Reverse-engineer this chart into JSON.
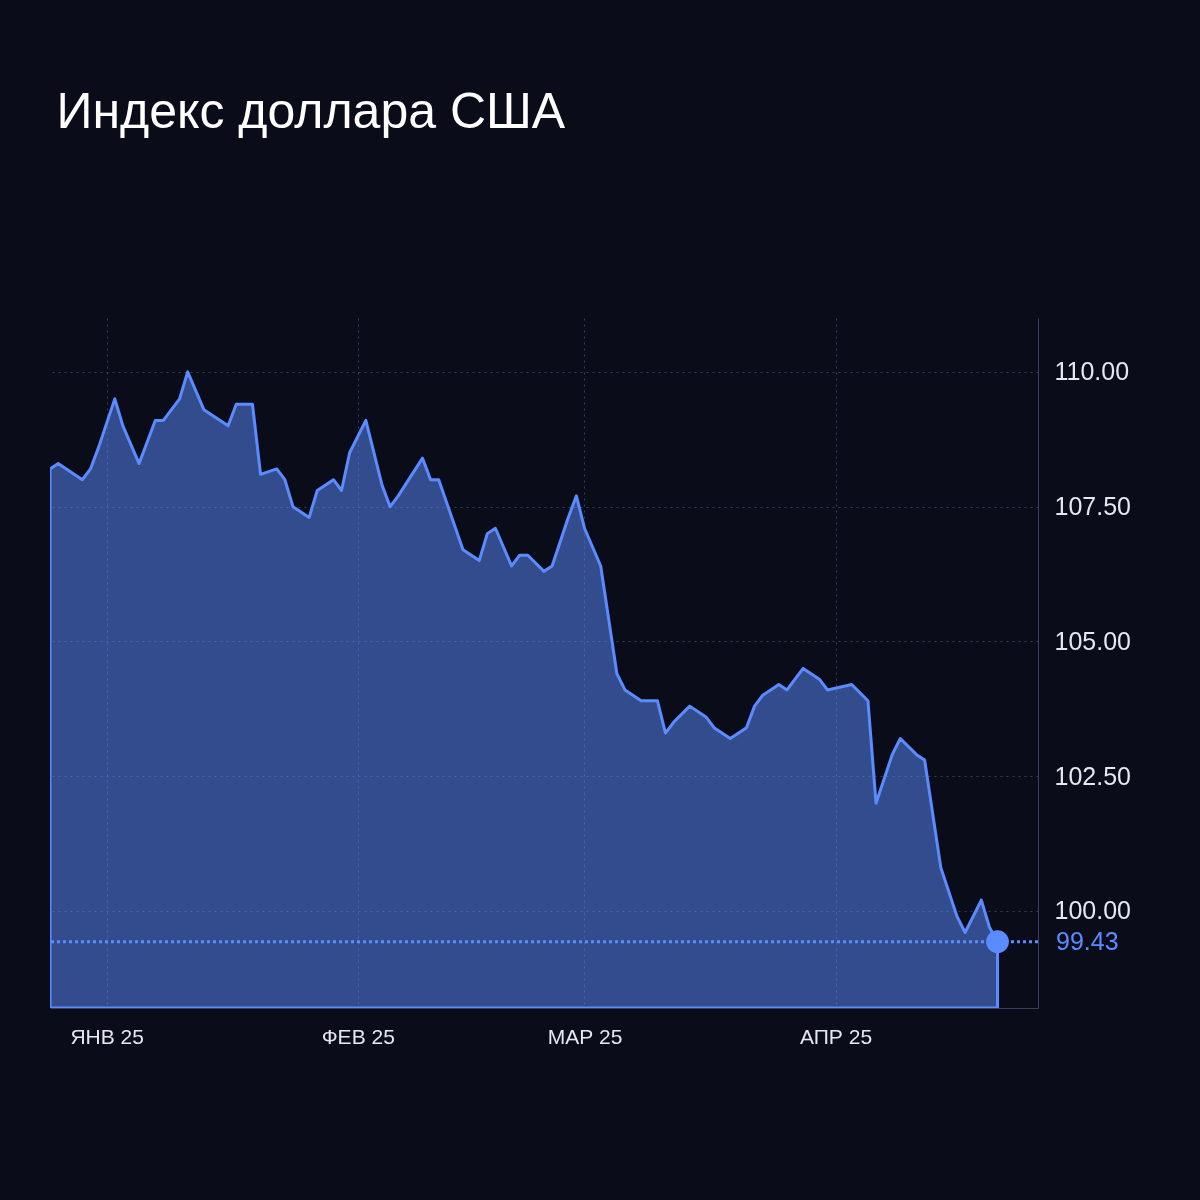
{
  "chart_data": {
    "type": "area",
    "title": "Индекс доллара США",
    "x": [
      "2024-12-25",
      "2024-12-26",
      "2024-12-29",
      "2024-12-30",
      "2024-12-31",
      "2025-01-02",
      "2025-01-03",
      "2025-01-05",
      "2025-01-06",
      "2025-01-07",
      "2025-01-08",
      "2025-01-10",
      "2025-01-11",
      "2025-01-13",
      "2025-01-16",
      "2025-01-17",
      "2025-01-19",
      "2025-01-20",
      "2025-01-22",
      "2025-01-23",
      "2025-01-24",
      "2025-01-26",
      "2025-01-27",
      "2025-01-29",
      "2025-01-30",
      "2025-01-31",
      "2025-02-02",
      "2025-02-04",
      "2025-02-05",
      "2025-02-06",
      "2025-02-09",
      "2025-02-10",
      "2025-02-11",
      "2025-02-14",
      "2025-02-16",
      "2025-02-17",
      "2025-02-18",
      "2025-02-20",
      "2025-02-21",
      "2025-02-22",
      "2025-02-24",
      "2025-02-25",
      "2025-02-27",
      "2025-02-28",
      "2025-03-01",
      "2025-03-03",
      "2025-03-05",
      "2025-03-06",
      "2025-03-08",
      "2025-03-10",
      "2025-03-11",
      "2025-03-12",
      "2025-03-14",
      "2025-03-16",
      "2025-03-17",
      "2025-03-19",
      "2025-03-21",
      "2025-03-22",
      "2025-03-23",
      "2025-03-25",
      "2025-03-26",
      "2025-03-28",
      "2025-03-30",
      "2025-03-31",
      "2025-04-03",
      "2025-04-05",
      "2025-04-06",
      "2025-04-08",
      "2025-04-09",
      "2025-04-11",
      "2025-04-12",
      "2025-04-14",
      "2025-04-16",
      "2025-04-17",
      "2025-04-19",
      "2025-04-20",
      "2025-04-21"
    ],
    "series": [
      {
        "color": "#5b8cff",
        "values": [
          108.2,
          108.3,
          108.0,
          108.2,
          108.6,
          109.5,
          109.0,
          108.3,
          108.7,
          109.1,
          109.1,
          109.5,
          110.0,
          109.3,
          109.0,
          109.4,
          109.4,
          108.1,
          108.2,
          108.0,
          107.5,
          107.3,
          107.8,
          108.0,
          107.8,
          108.5,
          109.1,
          107.9,
          107.5,
          107.7,
          108.4,
          108.0,
          108.0,
          106.7,
          106.5,
          107.0,
          107.1,
          106.4,
          106.6,
          106.6,
          106.3,
          106.4,
          107.3,
          107.7,
          107.1,
          106.4,
          104.4,
          104.1,
          103.9,
          103.9,
          103.3,
          103.5,
          103.8,
          103.6,
          103.4,
          103.2,
          103.4,
          103.8,
          104.0,
          104.2,
          104.1,
          104.5,
          104.3,
          104.1,
          104.2,
          103.9,
          102.0,
          102.9,
          103.2,
          102.9,
          102.8,
          100.8,
          99.9,
          99.6,
          100.2,
          99.7,
          99.43
        ]
      },
      {
        "type": "scatter",
        "color": "#5b8cff",
        "marker": "circle",
        "x": [
          "2025-04-21"
        ],
        "values": [
          99.43
        ]
      }
    ],
    "xlim": [
      "2024-12-25",
      "2025-04-26"
    ],
    "xticks": [
      {
        "value": "2025-01-01",
        "label": "ЯНВ 25"
      },
      {
        "value": "2025-02-01",
        "label": "ФЕВ 25"
      },
      {
        "value": "2025-03-01",
        "label": "МАР 25"
      },
      {
        "value": "2025-04-01",
        "label": "АПР 25"
      }
    ],
    "ylim": [
      98.2,
      111.0
    ],
    "yticks": [
      {
        "value": 100,
        "label": "100.00"
      },
      {
        "value": 102.5,
        "label": "102.50"
      },
      {
        "value": 105,
        "label": "105.00"
      },
      {
        "value": 107.5,
        "label": "107.50"
      },
      {
        "value": 110,
        "label": "110.00"
      }
    ],
    "ref_lines": [
      {
        "axis": "y",
        "value": 99.43,
        "label": "99.43",
        "color": "#5b8cff",
        "line_style": "dotted"
      }
    ],
    "grid": true
  }
}
